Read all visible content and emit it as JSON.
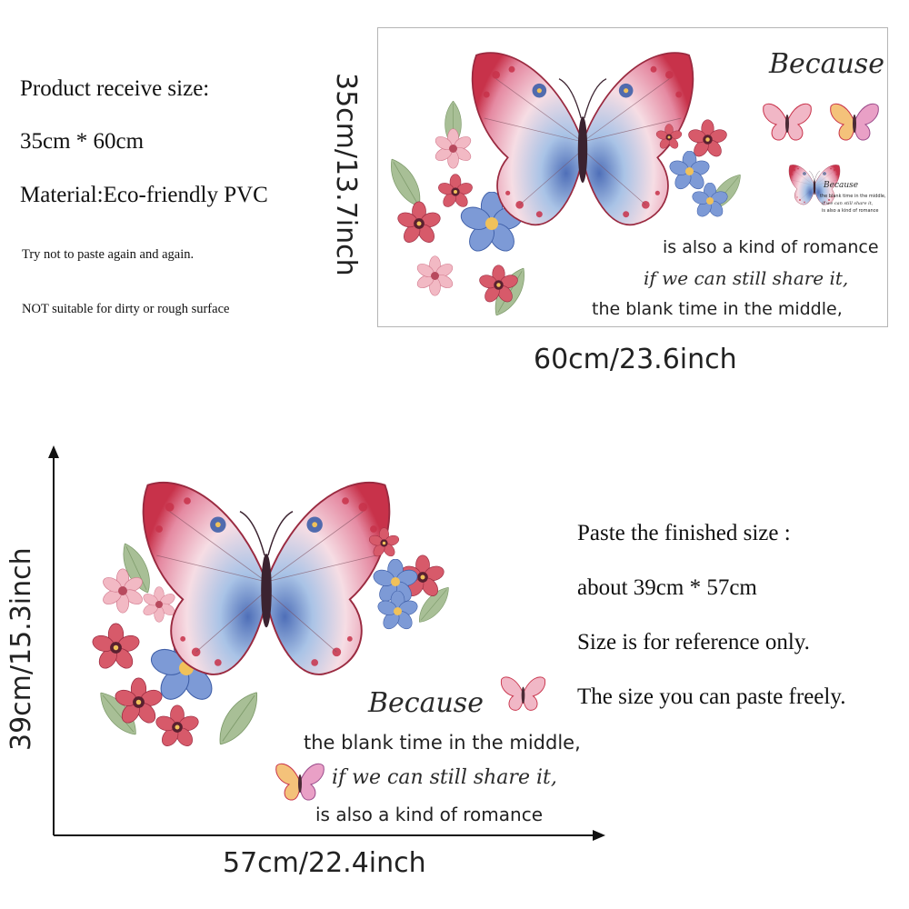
{
  "product_info": {
    "receive_size_label": "Product receive size:",
    "receive_size_value": "35cm * 60cm",
    "material": "Material:Eco-friendly PVC",
    "tip_1": "Try not to paste again and again.",
    "tip_2": "NOT suitable for dirty or rough surface"
  },
  "sheet_preview": {
    "height_label": "35cm/13.7inch",
    "width_label": "60cm/23.6inch",
    "quote_title": "Because",
    "quote_line_1": "is also a kind of romance",
    "quote_line_2": "if we can still share it,",
    "quote_line_3": "the blank time in the middle,",
    "mini_title": "Because",
    "mini_line_1": "the blank time in the middle,",
    "mini_line_2": "if we can still share it,",
    "mini_line_3": "is also a kind of romance"
  },
  "finished_preview": {
    "height_label": "39cm/15.3inch",
    "width_label": "57cm/22.4inch",
    "quote_title": "Because",
    "quote_line_1": "the blank time in the middle,",
    "quote_line_2": "if we can still share it,",
    "quote_line_3": "is also a kind of romance"
  },
  "finished_info": {
    "line_1": "Paste the finished size :",
    "line_2": "about 39cm * 57cm",
    "line_3": "Size is for reference only.",
    "line_4": "The size you can paste freely."
  },
  "colors": {
    "wing_pink": "#e58aa2",
    "wing_red": "#c8324a",
    "wing_blue": "#3f5fa8",
    "flower_blue": "#6f8fce",
    "leaf_green": "#8aa77a"
  }
}
